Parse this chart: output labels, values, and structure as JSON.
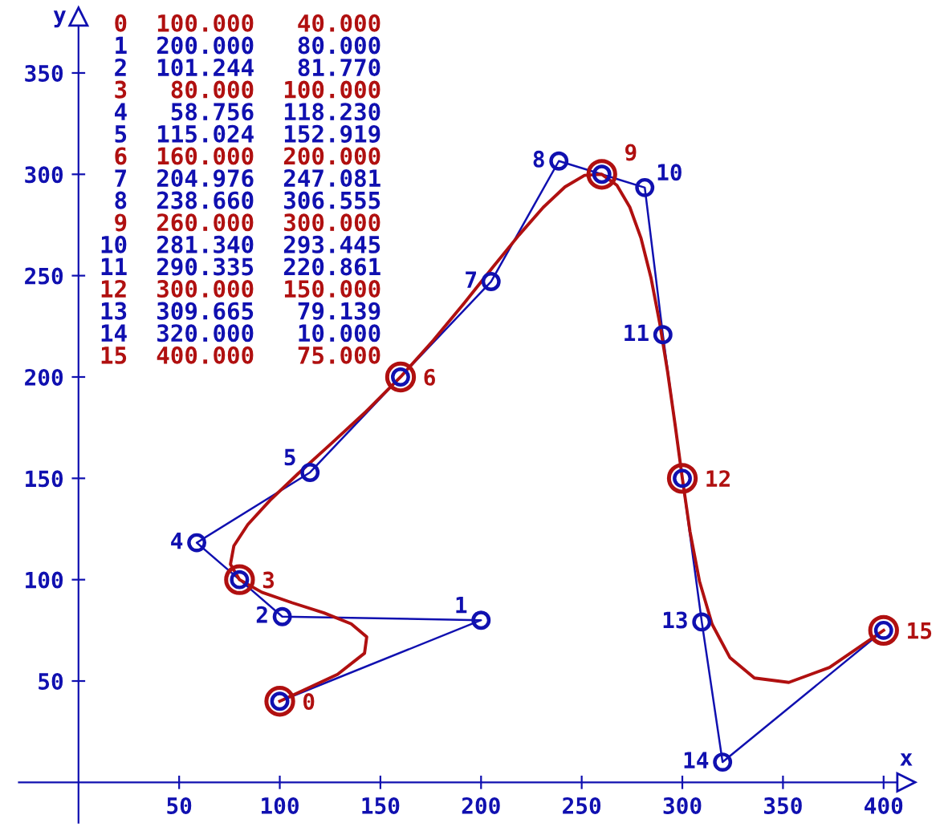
{
  "chart_data": {
    "type": "line",
    "xlabel": "x",
    "ylabel": "y",
    "xlim": [
      -39,
      430
    ],
    "ylim": [
      -24,
      386
    ],
    "xticks": [
      50,
      100,
      150,
      200,
      250,
      300,
      350,
      400
    ],
    "yticks": [
      50,
      100,
      150,
      200,
      250,
      300,
      350
    ],
    "grid": false,
    "annotations": [
      " 0  100.000   40.000",
      " 1  200.000   80.000",
      " 2  101.244   81.770",
      " 3   80.000  100.000",
      " 4   58.756  118.230",
      " 5  115.024  152.919",
      " 6  160.000  200.000",
      " 7  204.976  247.081",
      " 8  238.660  306.555",
      " 9  260.000  300.000",
      "10  281.340  293.445",
      "11  290.335  220.861",
      "12  300.000  150.000",
      "13  309.665   79.139",
      "14  320.000   10.000",
      "15  400.000   75.000",
      {
        "text": "0",
        "x": 100,
        "y": 40
      },
      {
        "text": "1",
        "x": 200,
        "y": 80
      },
      {
        "text": "2",
        "x": 101.244,
        "y": 81.77
      },
      {
        "text": "3",
        "x": 80,
        "y": 100
      },
      {
        "text": "4",
        "x": 58.756,
        "y": 118.23
      },
      {
        "text": "5",
        "x": 115.024,
        "y": 152.919
      },
      {
        "text": "6",
        "x": 160,
        "y": 200
      },
      {
        "text": "7",
        "x": 204.976,
        "y": 247.081
      },
      {
        "text": "8",
        "x": 238.66,
        "y": 306.555
      },
      {
        "text": "9",
        "x": 260,
        "y": 300
      },
      {
        "text": "10",
        "x": 281.34,
        "y": 293.445
      },
      {
        "text": "11",
        "x": 290.335,
        "y": 220.861
      },
      {
        "text": "12",
        "x": 300,
        "y": 150
      },
      {
        "text": "13",
        "x": 309.665,
        "y": 79.139
      },
      {
        "text": "14",
        "x": 320,
        "y": 10
      },
      {
        "text": "15",
        "x": 400,
        "y": 75
      }
    ],
    "series": [
      {
        "type": "line",
        "color": "#1010b0",
        "marker": "circle",
        "x": [
          100,
          200,
          101.244,
          80,
          58.756,
          115.024,
          160,
          204.976,
          238.66,
          260,
          281.34,
          290.335,
          300,
          309.665,
          320,
          400
        ],
        "values": [
          40,
          80,
          81.77,
          100,
          118.23,
          152.919,
          200,
          247.081,
          306.555,
          300,
          293.445,
          220.861,
          150,
          79.139,
          10,
          75
        ]
      },
      {
        "type": "line",
        "color": "#b01010",
        "marker": "none",
        "x": [
          100,
          128.7,
          142.1,
          143.2,
          135.5,
          122.0,
          106.2,
          91.1,
          80,
          75.5,
          77.2,
          84.1,
          95.2,
          109.3,
          125.5,
          142.8,
          160,
          176.3,
          191.6,
          205.8,
          218.9,
          230.9,
          241.7,
          251.4,
          260,
          267.5,
          273.9,
          279.5,
          284.4,
          288.7,
          292.7,
          296.4,
          300,
          303.8,
          308.5,
          314.8,
          323.6,
          335.8,
          352.9,
          373.1,
          400
        ],
        "values": [
          40,
          53.3,
          63.7,
          71.8,
          78.2,
          83.6,
          88.6,
          93.8,
          100,
          107.6,
          116.7,
          127.2,
          139.2,
          152.5,
          167.1,
          182.9,
          200,
          218.1,
          236.4,
          254.1,
          270.1,
          283.7,
          293.8,
          299.5,
          300,
          294.6,
          283.8,
          268.4,
          249.1,
          226.9,
          202.4,
          176.5,
          150,
          123.8,
          99.3,
          78.0,
          61.6,
          51.5,
          49.3,
          56.7,
          75
        ]
      },
      {
        "type": "scatter",
        "color": "#b01010",
        "marker": "circle",
        "x": [
          100,
          80,
          160,
          260,
          300,
          400
        ],
        "values": [
          40,
          100,
          200,
          300,
          150,
          75
        ]
      }
    ]
  }
}
